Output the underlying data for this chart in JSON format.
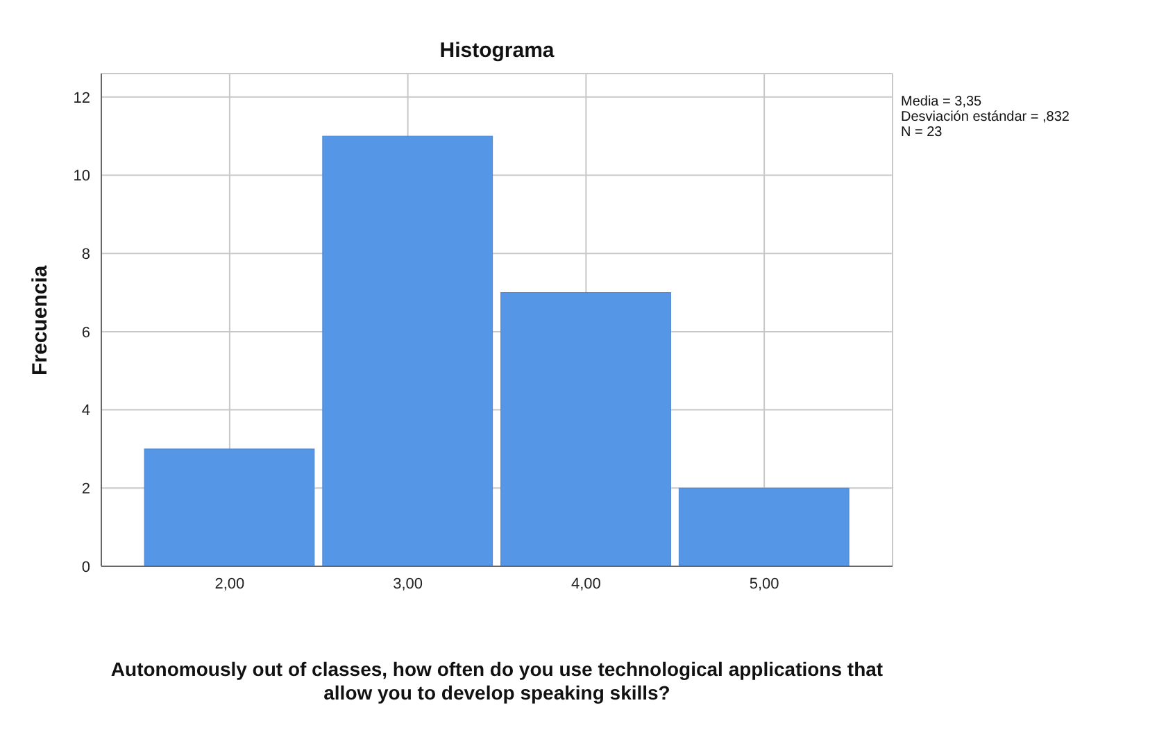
{
  "chart_data": {
    "type": "histogram",
    "title": "Histograma",
    "xlabel": "Autonomously out of classes, how often do you use technological applications that allow you to develop speaking skills?",
    "ylabel": "Frecuencia",
    "bins": [
      1.5,
      2.5,
      3.5,
      4.5,
      5.5
    ],
    "values": [
      3,
      11,
      7,
      2
    ],
    "color": "#5596e6",
    "xlim": [
      1.28,
      5.72
    ],
    "xticks": [
      {
        "value": 2,
        "label": "2,00"
      },
      {
        "value": 3,
        "label": "3,00"
      },
      {
        "value": 4,
        "label": "4,00"
      },
      {
        "value": 5,
        "label": "5,00"
      }
    ],
    "ylim": [
      0,
      12.6
    ],
    "yticks": [
      0,
      2,
      4,
      6,
      8,
      10,
      12
    ],
    "grid": true,
    "annotations": [
      "Media = 3,35",
      "Desviación estándar = ,832",
      "N = 23"
    ]
  }
}
